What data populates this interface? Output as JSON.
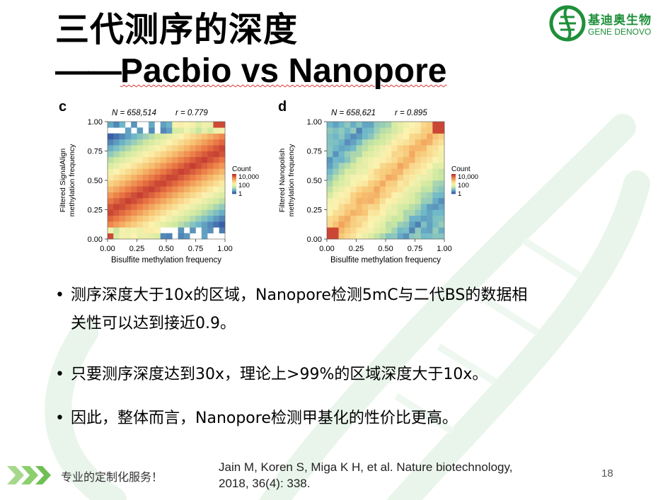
{
  "slide": {
    "title_line1": "三代测序的深度",
    "title_line2_dash": "——",
    "title_line2_text": "Pacbio vs Nanopore",
    "logo": {
      "name_cn": "基迪奥生物",
      "name_en": "GENE DENOVO"
    },
    "footer": {
      "slogan": "专业的定制化服务！"
    },
    "citation": {
      "line1": "Jain M, Koren S, Miga K H, et al. Nature biotechnology,",
      "line2": "2018, 36(4): 338."
    },
    "page_number": "18",
    "bullets": [
      {
        "line1": "测序深度大于10x的区域，Nanopore检测5mC与二代BS的数据相",
        "line2": "关性可以达到接近0.9。"
      },
      {
        "line1": "只要测序深度达到30x，理论上>99%的区域深度大于10x。"
      },
      {
        "line1": "因此，整体而言，Nanopore检测甲基化的性价比更高。"
      }
    ],
    "colors": {
      "brand_green": "#1f8f3a",
      "watermark_green": "#e8f5ea"
    }
  },
  "chart_data": [
    {
      "type": "heatmap",
      "panel_label": "c",
      "stat_text_n": "N = 658,514",
      "stat_text_r": "r = 0.779",
      "xlabel": "Bisulfite methylation frequency",
      "ylabel_line1": "Filtered SignalAlign",
      "ylabel_line2": "methylation frequency",
      "xticks": [
        "0.00",
        "0.25",
        "0.50",
        "0.75",
        "1.00"
      ],
      "yticks": [
        "0.00",
        "0.25",
        "0.50",
        "0.75",
        "1.00"
      ],
      "xlim": [
        0,
        1
      ],
      "ylim": [
        0,
        1
      ],
      "legend": {
        "title": "Count",
        "labels": [
          "10,000",
          "100",
          "1"
        ],
        "scale": "log"
      },
      "n": 658514,
      "r": 0.779
    },
    {
      "type": "heatmap",
      "panel_label": "d",
      "stat_text_n": "N = 658,621",
      "stat_text_r": "r = 0.895",
      "xlabel": "Bisulfite methylation frequency",
      "ylabel_line1": "Filtered Nanopolish",
      "ylabel_line2": "methylation frequency",
      "xticks": [
        "0.00",
        "0.25",
        "0.50",
        "0.75",
        "1.00"
      ],
      "yticks": [
        "0.00",
        "0.25",
        "0.50",
        "0.75",
        "1.00"
      ],
      "xlim": [
        0,
        1
      ],
      "ylim": [
        0,
        1
      ],
      "legend": {
        "title": "Count",
        "labels": [
          "10,000",
          "100",
          "1"
        ],
        "scale": "log"
      },
      "n": 658621,
      "r": 0.895
    }
  ]
}
